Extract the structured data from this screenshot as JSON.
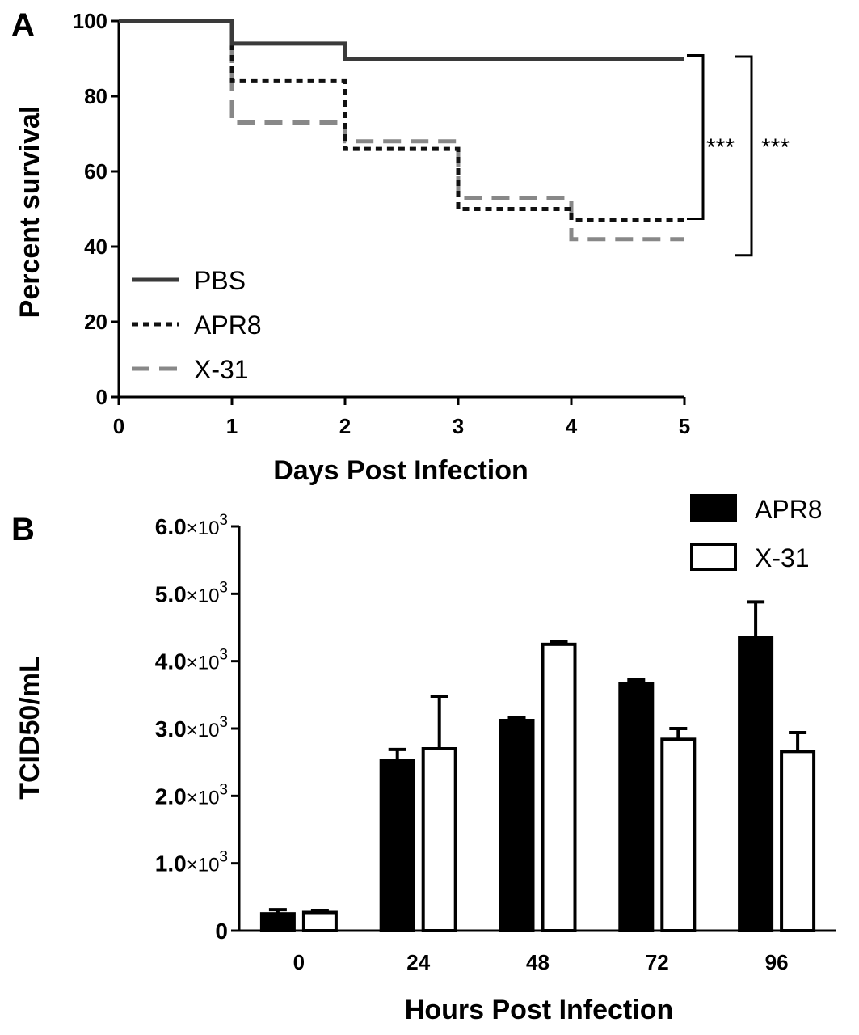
{
  "chart_data": [
    {
      "panel": "A",
      "type": "line",
      "step": true,
      "xlabel": "Days  Post Infection",
      "ylabel": "Percent survival",
      "xlim": [
        0,
        5
      ],
      "ylim": [
        0,
        100
      ],
      "x_ticks": [
        "0",
        "1",
        "2",
        "3",
        "4",
        "5"
      ],
      "y_ticks": [
        "0",
        "20",
        "40",
        "60",
        "80",
        "100"
      ],
      "legend_position": "bottom-left",
      "series": [
        {
          "name": "PBS",
          "style": "solid",
          "color": "#3a3a3a",
          "x": [
            0,
            1,
            2,
            3,
            4,
            5
          ],
          "y": [
            100,
            94,
            90,
            90,
            90,
            90
          ]
        },
        {
          "name": "APR8",
          "style": "dotted",
          "color": "#111111",
          "x": [
            0,
            1,
            2,
            3,
            4,
            5
          ],
          "y": [
            100,
            84,
            66,
            50,
            47,
            47
          ]
        },
        {
          "name": "X-31",
          "style": "dashed",
          "color": "#888888",
          "x": [
            0,
            1,
            2,
            3,
            4,
            5
          ],
          "y": [
            100,
            73,
            68,
            53,
            42,
            42
          ]
        }
      ],
      "annotations": [
        {
          "text": "***",
          "between": [
            "PBS",
            "APR8"
          ]
        },
        {
          "text": "***",
          "between": [
            "PBS",
            "X-31"
          ]
        }
      ]
    },
    {
      "panel": "B",
      "type": "bar",
      "xlabel": "Hours  Post  Infection",
      "ylabel": "TCID50/mL",
      "categories": [
        "0",
        "24",
        "48",
        "72",
        "96"
      ],
      "ylim": [
        0,
        6000
      ],
      "y_ticks": [
        {
          "mant": "0",
          "exp": ""
        },
        {
          "mant": "1.0",
          "exp": "3"
        },
        {
          "mant": "2.0",
          "exp": "3"
        },
        {
          "mant": "3.0",
          "exp": "3"
        },
        {
          "mant": "4.0",
          "exp": "3"
        },
        {
          "mant": "5.0",
          "exp": "3"
        },
        {
          "mant": "6.0",
          "exp": "3"
        }
      ],
      "y_tick_times": "×10",
      "legend_position": "top-right",
      "series": [
        {
          "name": "APR8",
          "fill": "#000000",
          "values": [
            250,
            2520,
            3120,
            3670,
            4350
          ],
          "errors": [
            60,
            170,
            40,
            50,
            530
          ]
        },
        {
          "name": "X-31",
          "fill": "#ffffff",
          "values": [
            270,
            2700,
            4250,
            2840,
            2660
          ],
          "errors": [
            30,
            780,
            40,
            160,
            280
          ]
        }
      ]
    }
  ]
}
